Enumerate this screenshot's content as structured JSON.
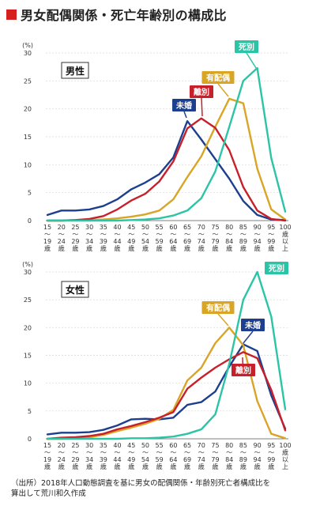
{
  "title": "男女配偶関係・死亡年齢別の構成比",
  "source_line1": "（出所）2018年人口動態調査を基に男女の配偶関係・年齢別死亡者構成比を",
  "source_line2": "算出して荒川和久作成",
  "colors": {
    "marker": "#d6201f",
    "未婚": "#1d3f8f",
    "有配偶": "#d9a526",
    "離別": "#c8202a",
    "死別": "#2bc4a6"
  },
  "chart_data": [
    {
      "type": "line",
      "title": "男性",
      "ylabel": "(%)",
      "ylim": [
        0,
        30
      ],
      "yticks": [
        0,
        5,
        10,
        15,
        20,
        25,
        30
      ],
      "x_labels": [
        [
          "15",
          "〜",
          "19",
          "歳"
        ],
        [
          "20",
          "〜",
          "24",
          "歳"
        ],
        [
          "25",
          "〜",
          "29",
          "歳"
        ],
        [
          "30",
          "〜",
          "34",
          "歳"
        ],
        [
          "35",
          "〜",
          "39",
          "歳"
        ],
        [
          "40",
          "〜",
          "44",
          "歳"
        ],
        [
          "45",
          "〜",
          "49",
          "歳"
        ],
        [
          "50",
          "〜",
          "54",
          "歳"
        ],
        [
          "55",
          "〜",
          "59",
          "歳"
        ],
        [
          "60",
          "〜",
          "64",
          "歳"
        ],
        [
          "65",
          "〜",
          "69",
          "歳"
        ],
        [
          "70",
          "〜",
          "74",
          "歳"
        ],
        [
          "75",
          "〜",
          "79",
          "歳"
        ],
        [
          "80",
          "〜",
          "84",
          "歳"
        ],
        [
          "85",
          "〜",
          "89",
          "歳"
        ],
        [
          "90",
          "〜",
          "94",
          "歳"
        ],
        [
          "95",
          "〜",
          "99",
          "歳"
        ],
        [
          "100",
          "歳",
          "以",
          "上"
        ]
      ],
      "series": [
        {
          "name": "未婚",
          "color": "#1d3f8f",
          "values": [
            1.0,
            1.8,
            1.8,
            2.0,
            2.6,
            3.8,
            5.6,
            6.8,
            8.3,
            11.3,
            17.8,
            14.5,
            11.0,
            7.5,
            3.5,
            1.0,
            0.2,
            0.1
          ]
        },
        {
          "name": "有配偶",
          "color": "#d9a526",
          "values": [
            0.0,
            0.0,
            0.1,
            0.1,
            0.2,
            0.4,
            0.7,
            1.1,
            1.8,
            3.8,
            7.8,
            11.5,
            16.8,
            21.8,
            21.0,
            9.3,
            2.0,
            0.2
          ]
        },
        {
          "name": "離別",
          "color": "#c8202a",
          "values": [
            0.0,
            0.0,
            0.1,
            0.3,
            0.8,
            2.0,
            3.6,
            4.8,
            7.0,
            10.6,
            16.5,
            18.3,
            16.6,
            12.6,
            6.0,
            1.8,
            0.3,
            0.0
          ]
        },
        {
          "name": "死別",
          "color": "#2bc4a6",
          "values": [
            0.0,
            0.0,
            0.0,
            0.0,
            0.0,
            0.0,
            0.1,
            0.2,
            0.4,
            0.9,
            1.8,
            4.0,
            8.8,
            16.8,
            25.0,
            27.3,
            11.2,
            1.6
          ]
        }
      ]
    },
    {
      "type": "line",
      "title": "女性",
      "ylabel": "(%)",
      "ylim": [
        0,
        30
      ],
      "yticks": [
        0,
        5,
        10,
        15,
        20,
        25,
        30
      ],
      "x_labels": [
        [
          "15",
          "〜",
          "19",
          "歳"
        ],
        [
          "20",
          "〜",
          "24",
          "歳"
        ],
        [
          "25",
          "〜",
          "29",
          "歳"
        ],
        [
          "30",
          "〜",
          "34",
          "歳"
        ],
        [
          "35",
          "〜",
          "39",
          "歳"
        ],
        [
          "40",
          "〜",
          "44",
          "歳"
        ],
        [
          "45",
          "〜",
          "49",
          "歳"
        ],
        [
          "50",
          "〜",
          "54",
          "歳"
        ],
        [
          "55",
          "〜",
          "59",
          "歳"
        ],
        [
          "60",
          "〜",
          "64",
          "歳"
        ],
        [
          "65",
          "〜",
          "69",
          "歳"
        ],
        [
          "70",
          "〜",
          "74",
          "歳"
        ],
        [
          "75",
          "〜",
          "79",
          "歳"
        ],
        [
          "80",
          "〜",
          "84",
          "歳"
        ],
        [
          "85",
          "〜",
          "89",
          "歳"
        ],
        [
          "90",
          "〜",
          "94",
          "歳"
        ],
        [
          "95",
          "〜",
          "99",
          "歳"
        ],
        [
          "100",
          "歳",
          "以",
          "上"
        ]
      ],
      "series": [
        {
          "name": "未婚",
          "color": "#1d3f8f",
          "values": [
            0.8,
            1.1,
            1.1,
            1.2,
            1.6,
            2.4,
            3.5,
            3.6,
            3.5,
            3.8,
            6.1,
            6.6,
            8.5,
            13.0,
            17.0,
            15.8,
            7.8,
            1.8
          ]
        },
        {
          "name": "有配偶",
          "color": "#d9a526",
          "values": [
            0.0,
            0.0,
            0.1,
            0.3,
            0.7,
            1.4,
            2.0,
            2.7,
            3.6,
            5.2,
            10.5,
            12.8,
            17.2,
            20.0,
            16.8,
            6.8,
            0.9,
            0.1
          ]
        },
        {
          "name": "離別",
          "color": "#c8202a",
          "values": [
            0.0,
            0.2,
            0.3,
            0.5,
            0.9,
            1.7,
            2.3,
            3.0,
            3.8,
            4.8,
            9.0,
            11.0,
            12.8,
            14.3,
            15.6,
            14.5,
            8.8,
            1.5
          ]
        },
        {
          "name": "死別",
          "color": "#2bc4a6",
          "values": [
            0.0,
            0.0,
            0.0,
            0.0,
            0.0,
            0.0,
            0.1,
            0.1,
            0.2,
            0.4,
            0.9,
            1.7,
            4.4,
            13.5,
            25.0,
            30.0,
            22.0,
            5.3
          ]
        }
      ]
    }
  ]
}
